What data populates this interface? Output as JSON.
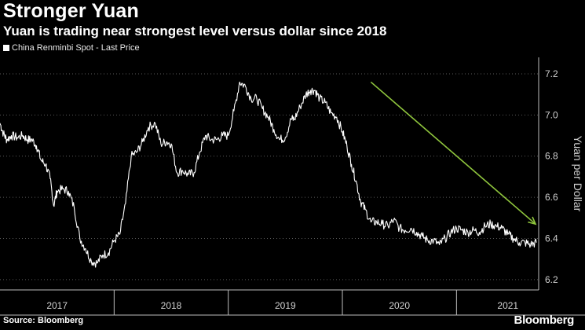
{
  "header": {
    "title": "Stronger Yuan",
    "subtitle": "Yuan is trading near strongest level versus dollar since 2018"
  },
  "legend": {
    "label": "China Renminbi Spot - Last Price"
  },
  "footer": {
    "source": "Source: Bloomberg",
    "brand": "Bloomberg"
  },
  "colors": {
    "background": "#000000",
    "line": "#ffffff",
    "grid": "#5a5a5a",
    "arrow": "#8fc53d",
    "axis_text": "#d0d0d0"
  },
  "chart_data": {
    "type": "line",
    "title": "Stronger Yuan",
    "subtitle": "Yuan is trading near strongest level versus dollar since 2018",
    "xlabel": "",
    "ylabel": "Yuan per Dollar",
    "ylim": [
      6.15,
      7.28
    ],
    "xlim": [
      2017.0,
      2021.72
    ],
    "y_ticks": [
      6.2,
      6.4,
      6.6,
      6.8,
      7.0,
      7.2
    ],
    "y_tick_labels": [
      "6.2",
      "6.4",
      "6.6",
      "6.8",
      "7.0",
      "7.2"
    ],
    "x_tick_labels": [
      "2017",
      "2018",
      "2019",
      "2020",
      "2021"
    ],
    "x_tick_centers": [
      2017.5,
      2018.5,
      2019.5,
      2020.5,
      2021.45
    ],
    "x_boundaries": [
      2018.0,
      2019.0,
      2020.0,
      2021.0
    ],
    "grid": true,
    "legend_position": "top-left",
    "series": [
      {
        "name": "China Renminbi Spot - Last Price",
        "x": [
          2017.0,
          2017.03,
          2017.06,
          2017.1,
          2017.15,
          2017.2,
          2017.24,
          2017.28,
          2017.32,
          2017.36,
          2017.4,
          2017.44,
          2017.47,
          2017.5,
          2017.55,
          2017.6,
          2017.65,
          2017.7,
          2017.75,
          2017.8,
          2017.85,
          2017.9,
          2017.95,
          2018.0,
          2018.05,
          2018.1,
          2018.15,
          2018.2,
          2018.25,
          2018.3,
          2018.36,
          2018.41,
          2018.46,
          2018.5,
          2018.55,
          2018.6,
          2018.65,
          2018.7,
          2018.75,
          2018.8,
          2018.85,
          2018.9,
          2018.95,
          2019.0,
          2019.05,
          2019.1,
          2019.15,
          2019.2,
          2019.25,
          2019.3,
          2019.35,
          2019.4,
          2019.45,
          2019.5,
          2019.55,
          2019.58,
          2019.63,
          2019.68,
          2019.72,
          2019.76,
          2019.8,
          2019.85,
          2019.9,
          2019.95,
          2020.0,
          2020.04,
          2020.08,
          2020.12,
          2020.16,
          2020.2,
          2020.25,
          2020.3,
          2020.35,
          2020.4,
          2020.45,
          2020.5,
          2020.55,
          2020.6,
          2020.65,
          2020.7,
          2020.75,
          2020.8,
          2020.85,
          2020.9,
          2020.95,
          2021.0,
          2021.05,
          2021.1,
          2021.15,
          2021.2,
          2021.25,
          2021.3,
          2021.35,
          2021.4,
          2021.45,
          2021.5,
          2021.55,
          2021.6,
          2021.65,
          2021.7
        ],
        "values": [
          6.96,
          6.91,
          6.88,
          6.9,
          6.89,
          6.9,
          6.88,
          6.88,
          6.85,
          6.78,
          6.76,
          6.69,
          6.56,
          6.63,
          6.64,
          6.63,
          6.55,
          6.4,
          6.35,
          6.29,
          6.28,
          6.32,
          6.33,
          6.39,
          6.42,
          6.57,
          6.8,
          6.82,
          6.87,
          6.94,
          6.96,
          6.86,
          6.87,
          6.86,
          6.72,
          6.73,
          6.71,
          6.72,
          6.82,
          6.9,
          6.88,
          6.88,
          6.9,
          6.9,
          7.02,
          7.16,
          7.14,
          7.08,
          7.08,
          7.03,
          6.99,
          6.93,
          6.88,
          6.89,
          6.98,
          6.98,
          7.04,
          7.1,
          7.12,
          7.12,
          7.08,
          7.06,
          7.01,
          6.99,
          6.92,
          6.85,
          6.76,
          6.68,
          6.58,
          6.54,
          6.48,
          6.48,
          6.47,
          6.46,
          6.49,
          6.45,
          6.44,
          6.45,
          6.43,
          6.41,
          6.39,
          6.39,
          6.37,
          6.4,
          6.43,
          6.45,
          6.44,
          6.43,
          6.44,
          6.43,
          6.46,
          6.47,
          6.46,
          6.45,
          6.42,
          6.4,
          6.38,
          6.38,
          6.37,
          6.38
        ]
      }
    ],
    "annotations": [
      {
        "type": "arrow",
        "label": "",
        "from": [
          2020.25,
          7.16
        ],
        "to": [
          2021.72,
          6.47
        ]
      }
    ]
  }
}
